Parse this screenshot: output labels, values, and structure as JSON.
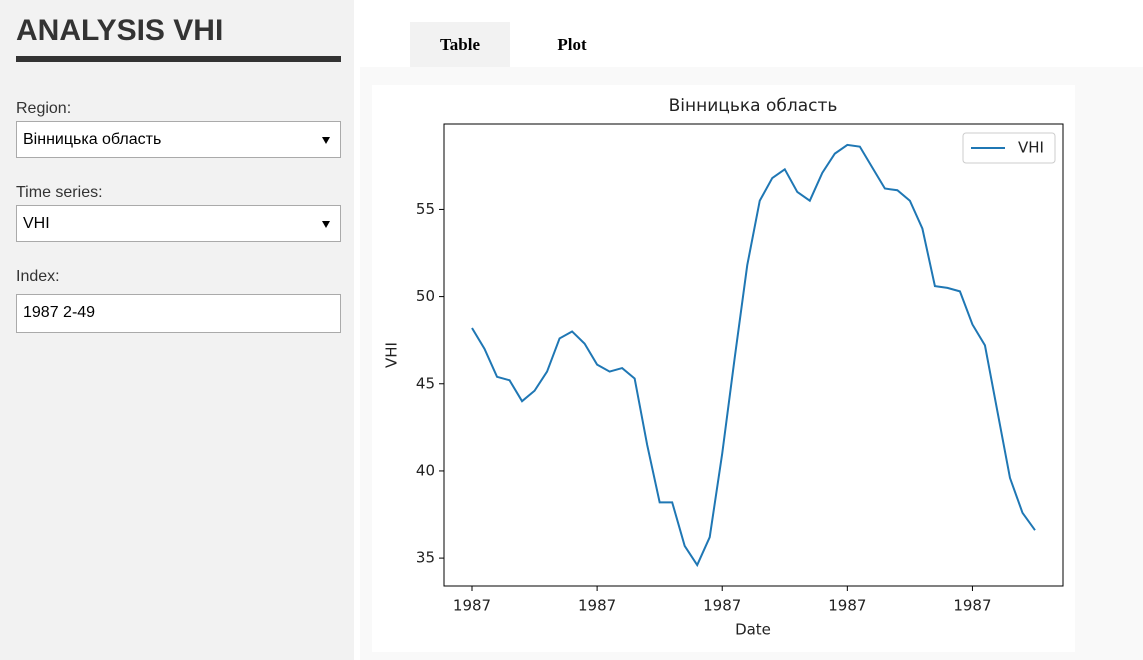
{
  "sidebar": {
    "title": "ANALYSIS VHI",
    "region_label": "Region:",
    "region_value": "Вінницька область",
    "series_label": "Time series:",
    "series_value": "VHI",
    "index_label": "Index:",
    "index_value": "1987 2-49"
  },
  "tabs": [
    "Table",
    "Plot"
  ],
  "chart_data": {
    "type": "line",
    "title": "Вінницька область",
    "x_label": "Date",
    "y_label": "VHI",
    "categories": [
      "1987",
      null,
      null,
      null,
      null,
      null,
      null,
      null,
      null,
      null,
      "1987",
      null,
      null,
      null,
      null,
      null,
      null,
      null,
      null,
      null,
      "1987",
      null,
      null,
      null,
      null,
      null,
      null,
      null,
      null,
      null,
      "1987",
      null,
      null,
      null,
      null,
      null,
      null,
      null,
      null,
      null,
      "1987",
      null,
      null,
      null,
      null,
      null
    ],
    "series": [
      {
        "name": "VHI",
        "color": "#1f77b4",
        "values": [
          48.2,
          47.0,
          45.4,
          45.2,
          44.0,
          44.6,
          45.7,
          47.6,
          48.0,
          47.3,
          46.1,
          45.7,
          45.9,
          45.3,
          41.5,
          38.2,
          38.2,
          35.7,
          34.6,
          36.2,
          41.0,
          46.5,
          51.8,
          55.5,
          56.8,
          57.3,
          56.0,
          55.5,
          57.1,
          58.2,
          58.7,
          58.6,
          57.4,
          56.2,
          56.1,
          55.5,
          53.9,
          50.6,
          50.5,
          50.3,
          48.4,
          47.2,
          43.4,
          39.6,
          37.6,
          36.6
        ]
      }
    ],
    "ylim": [
      33.4,
      59.9
    ],
    "yticks": [
      35,
      40,
      45,
      50,
      55
    ],
    "legend": "upper right",
    "grid": false
  }
}
